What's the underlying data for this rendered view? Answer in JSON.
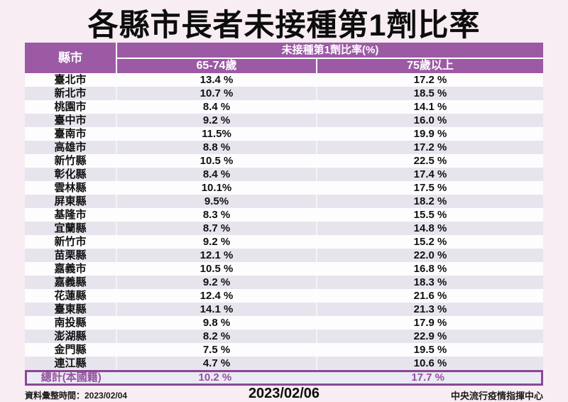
{
  "title": "各縣市長者未接種第1劑比率",
  "table": {
    "header": {
      "county": "縣市",
      "group": "未接種第1劑比率(%)",
      "age_65_74": "65-74歲",
      "age_75_plus": "75歲以上"
    },
    "rows": [
      {
        "county": "臺北市",
        "v65": "13.4 %",
        "v75": "17.2 %"
      },
      {
        "county": "新北市",
        "v65": "10.7 %",
        "v75": "18.5 %"
      },
      {
        "county": "桃園市",
        "v65": "8.4 %",
        "v75": "14.1 %"
      },
      {
        "county": "臺中市",
        "v65": "9.2 %",
        "v75": "16.0 %"
      },
      {
        "county": "臺南市",
        "v65": "11.5%",
        "v75": "19.9 %"
      },
      {
        "county": "高雄市",
        "v65": "8.8 %",
        "v75": "17.2 %"
      },
      {
        "county": "新竹縣",
        "v65": "10.5 %",
        "v75": "22.5 %"
      },
      {
        "county": "彰化縣",
        "v65": "8.4 %",
        "v75": "17.4 %"
      },
      {
        "county": "雲林縣",
        "v65": "10.1%",
        "v75": "17.5 %"
      },
      {
        "county": "屏東縣",
        "v65": "9.5%",
        "v75": "18.2 %"
      },
      {
        "county": "基隆市",
        "v65": "8.3 %",
        "v75": "15.5 %"
      },
      {
        "county": "宜蘭縣",
        "v65": "8.7 %",
        "v75": "14.8 %"
      },
      {
        "county": "新竹市",
        "v65": "9.2 %",
        "v75": "15.2 %"
      },
      {
        "county": "苗栗縣",
        "v65": "12.1 %",
        "v75": "22.0 %"
      },
      {
        "county": "嘉義市",
        "v65": "10.5 %",
        "v75": "16.8 %"
      },
      {
        "county": "嘉義縣",
        "v65": "9.2 %",
        "v75": "18.3 %"
      },
      {
        "county": "花蓮縣",
        "v65": "12.4 %",
        "v75": "21.6 %"
      },
      {
        "county": "臺東縣",
        "v65": "14.1 %",
        "v75": "21.3 %"
      },
      {
        "county": "南投縣",
        "v65": "9.8 %",
        "v75": "17.9 %"
      },
      {
        "county": "澎湖縣",
        "v65": "8.2 %",
        "v75": "22.9 %"
      },
      {
        "county": "金門縣",
        "v65": "7.5 %",
        "v75": "19.5 %"
      },
      {
        "county": "連江縣",
        "v65": "4.7 %",
        "v75": "10.6 %"
      }
    ],
    "total": {
      "county": "總計(本國籍)",
      "v65": "10.2 %",
      "v75": "17.7 %"
    }
  },
  "footer": {
    "compiled_label": "資料彙整時間：2023/02/04",
    "date": "2023/02/06",
    "org": "中央流行疫情指揮中心"
  },
  "colors": {
    "page_bg": "#F7EDF2",
    "header_bg": "#9C5AA5",
    "row_alt_bg": "#E7E4ED",
    "row_bg": "#FEFDFE",
    "total_bg": "#EAEAF4",
    "total_border": "#8A4796",
    "total_text": "#94519F"
  },
  "chart_data": {
    "type": "table",
    "title": "各縣市長者未接種第1劑比率",
    "columns": [
      "縣市",
      "未接種第1劑比率(%) 65-74歲",
      "未接種第1劑比率(%) 75歲以上"
    ],
    "rows": [
      [
        "臺北市",
        13.4,
        17.2
      ],
      [
        "新北市",
        10.7,
        18.5
      ],
      [
        "桃園市",
        8.4,
        14.1
      ],
      [
        "臺中市",
        9.2,
        16.0
      ],
      [
        "臺南市",
        11.5,
        19.9
      ],
      [
        "高雄市",
        8.8,
        17.2
      ],
      [
        "新竹縣",
        10.5,
        22.5
      ],
      [
        "彰化縣",
        8.4,
        17.4
      ],
      [
        "雲林縣",
        10.1,
        17.5
      ],
      [
        "屏東縣",
        9.5,
        18.2
      ],
      [
        "基隆市",
        8.3,
        15.5
      ],
      [
        "宜蘭縣",
        8.7,
        14.8
      ],
      [
        "新竹市",
        9.2,
        15.2
      ],
      [
        "苗栗縣",
        12.1,
        22.0
      ],
      [
        "嘉義市",
        10.5,
        16.8
      ],
      [
        "嘉義縣",
        9.2,
        18.3
      ],
      [
        "花蓮縣",
        12.4,
        21.6
      ],
      [
        "臺東縣",
        14.1,
        21.3
      ],
      [
        "南投縣",
        9.8,
        17.9
      ],
      [
        "澎湖縣",
        8.2,
        22.9
      ],
      [
        "金門縣",
        7.5,
        19.5
      ],
      [
        "連江縣",
        4.7,
        10.6
      ],
      [
        "總計(本國籍)",
        10.2,
        17.7
      ]
    ]
  }
}
